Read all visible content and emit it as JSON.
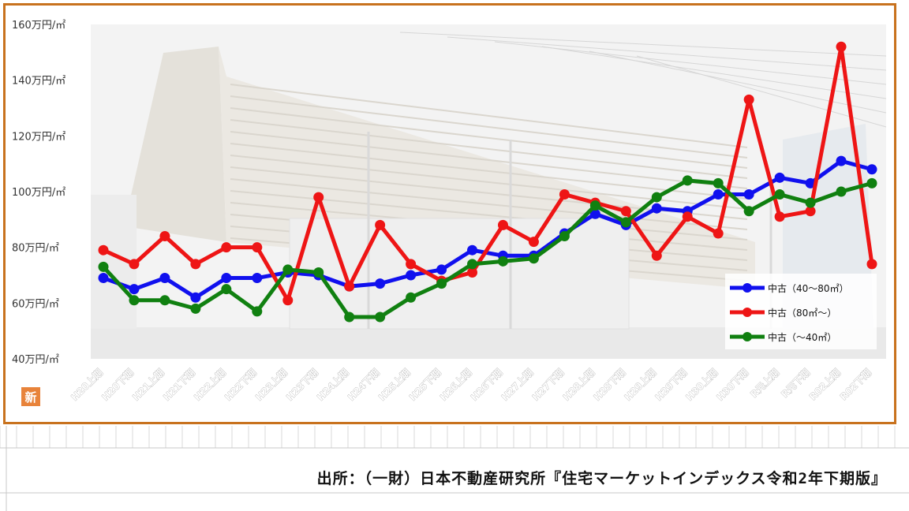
{
  "chart_data": {
    "type": "line",
    "title": "",
    "xlabel": "",
    "ylabel": "",
    "ylim": [
      40,
      160
    ],
    "yticks": [
      "160万円/㎡",
      "140万円/㎡",
      "120万円/㎡",
      "100万円/㎡",
      "80万円/㎡",
      "60万円/㎡",
      "40万円/㎡"
    ],
    "ytick_values": [
      160,
      140,
      120,
      100,
      80,
      60,
      40
    ],
    "categories": [
      "H20上期",
      "H20下期",
      "H21上期",
      "H21下期",
      "H22上期",
      "H22下期",
      "H23上期",
      "H23下期",
      "H24上期",
      "H24下期",
      "H25上期",
      "H25下期",
      "H26上期",
      "H26下期",
      "H27上期",
      "H27下期",
      "H28上期",
      "H28下期",
      "H29上期",
      "H29下期",
      "H30上期",
      "H30下期",
      "R元上期",
      "R元下期",
      "R02上期",
      "R02下期"
    ],
    "legend_position": "bottom-right",
    "grid": false,
    "series": [
      {
        "name": "中古（40～80㎡）",
        "color": "#1010ee",
        "values": [
          69,
          65,
          69,
          62,
          69,
          69,
          71,
          70,
          66,
          67,
          70,
          72,
          79,
          77,
          77,
          85,
          92,
          88,
          94,
          93,
          99,
          99,
          105,
          103,
          111,
          108
        ]
      },
      {
        "name": "中古（80㎡～）",
        "color": "#ee1515",
        "values": [
          79,
          74,
          84,
          74,
          80,
          80,
          61,
          98,
          66,
          88,
          74,
          68,
          71,
          88,
          82,
          99,
          96,
          93,
          77,
          91,
          85,
          133,
          91,
          93,
          152,
          74
        ]
      },
      {
        "name": "中古（～40㎡）",
        "color": "#108010",
        "values": [
          73,
          61,
          61,
          58,
          65,
          57,
          72,
          71,
          55,
          55,
          62,
          67,
          74,
          75,
          76,
          84,
          95,
          89,
          98,
          104,
          103,
          93,
          99,
          96,
          100,
          103
        ]
      }
    ]
  },
  "badge": "新",
  "source": "出所：（一財）日本不動産研究所『住宅マーケットインデックス令和2年下期版』"
}
